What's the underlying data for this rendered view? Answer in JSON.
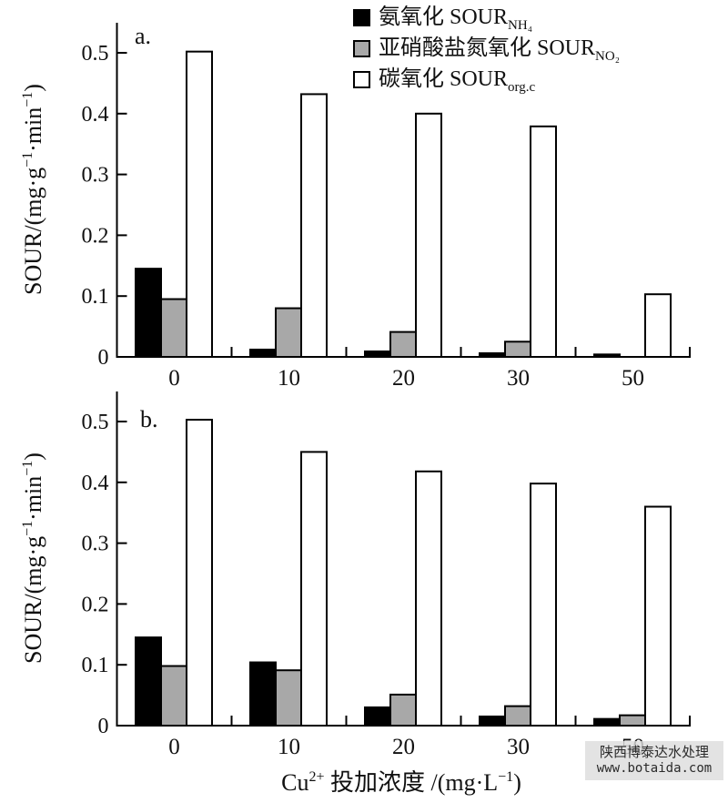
{
  "chart_data": {
    "type": "bar",
    "xlabel": "Cu2+ 投加浓度 /(mg·L-1)",
    "xlabel_rich": [
      {
        "t": "Cu"
      },
      {
        "sup": "2+"
      },
      {
        "t": " 投加浓度 /(mg·L"
      },
      {
        "sup": "−1"
      },
      {
        "t": ")"
      }
    ],
    "ylabel": "SOUR/(mg·g-1·min-1)",
    "ylabel_rich": [
      {
        "t": "SOUR/(mg·g"
      },
      {
        "sup": "−1"
      },
      {
        "t": "·min"
      },
      {
        "sup": "−1"
      },
      {
        "t": ")"
      }
    ],
    "categories": [
      "0",
      "10",
      "20",
      "30",
      "50"
    ],
    "yticks": [
      0,
      0.1,
      0.2,
      0.3,
      0.4,
      0.5
    ],
    "ylim": [
      0,
      0.55
    ],
    "grid": false,
    "legend_position": "top-right-inside",
    "panels": [
      {
        "label": "a.",
        "series": [
          {
            "name": "氨氧化 SOUR_NH4",
            "color": "#000000",
            "values": [
              0.145,
              0.012,
              0.009,
              0.006,
              0.004
            ]
          },
          {
            "name": "亚硝酸盐氮氧化 SOUR_NO2",
            "color": "#a8a8a8",
            "values": [
              0.095,
              0.08,
              0.041,
              0.025,
              0.0
            ]
          },
          {
            "name": "碳氧化 SOUR_org.c",
            "color": "#ffffff",
            "values": [
              0.502,
              0.432,
              0.4,
              0.379,
              0.103
            ]
          }
        ]
      },
      {
        "label": "b.",
        "series": [
          {
            "name": "氨氧化 SOUR_NH4",
            "color": "#000000",
            "values": [
              0.145,
              0.104,
              0.03,
              0.015,
              0.011
            ]
          },
          {
            "name": "亚硝酸盐氮氧化 SOUR_NO2",
            "color": "#a8a8a8",
            "values": [
              0.098,
              0.091,
              0.051,
              0.032,
              0.017
            ]
          },
          {
            "name": "碳氧化 SOUR_org.c",
            "color": "#ffffff",
            "values": [
              0.503,
              0.45,
              0.418,
              0.398,
              0.36
            ]
          }
        ]
      }
    ],
    "legend": [
      {
        "prefix": "氨氧化 SOUR",
        "sub": "NH₄",
        "fill": "#000000"
      },
      {
        "prefix": "亚硝酸盐氮氧化 SOUR",
        "sub": "NO₂",
        "fill": "#a8a8a8"
      },
      {
        "prefix": "碳氧化 SOUR",
        "sub": "org.c",
        "fill": "#ffffff"
      }
    ]
  },
  "watermark": {
    "line1": "陕西博泰达水处理",
    "line2": "www.botaida.com"
  }
}
